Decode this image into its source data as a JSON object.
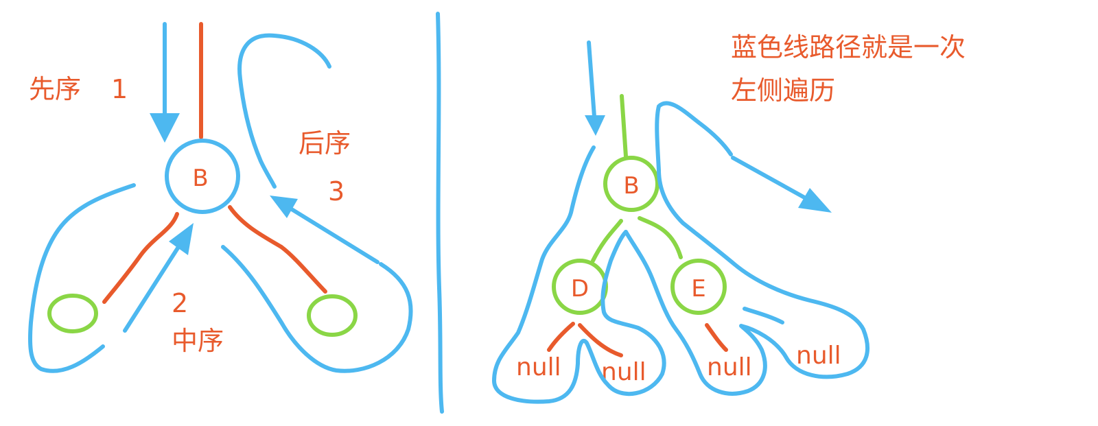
{
  "colors": {
    "blue_path": "#4db8f0",
    "red_edge": "#e85a2c",
    "green_node": "#8ad646",
    "text": "#e85a2c"
  },
  "left_diagram": {
    "node_label": "B",
    "preorder_label": "先序",
    "preorder_num": "1",
    "inorder_num": "2",
    "inorder_label": "中序",
    "postorder_label": "后序",
    "postorder_num": "3"
  },
  "right_diagram": {
    "caption_line1": "蓝色线路径就是一次",
    "caption_line2": "左侧遍历",
    "root": "B",
    "left_child": "D",
    "right_child": "E",
    "null_label": "null"
  }
}
